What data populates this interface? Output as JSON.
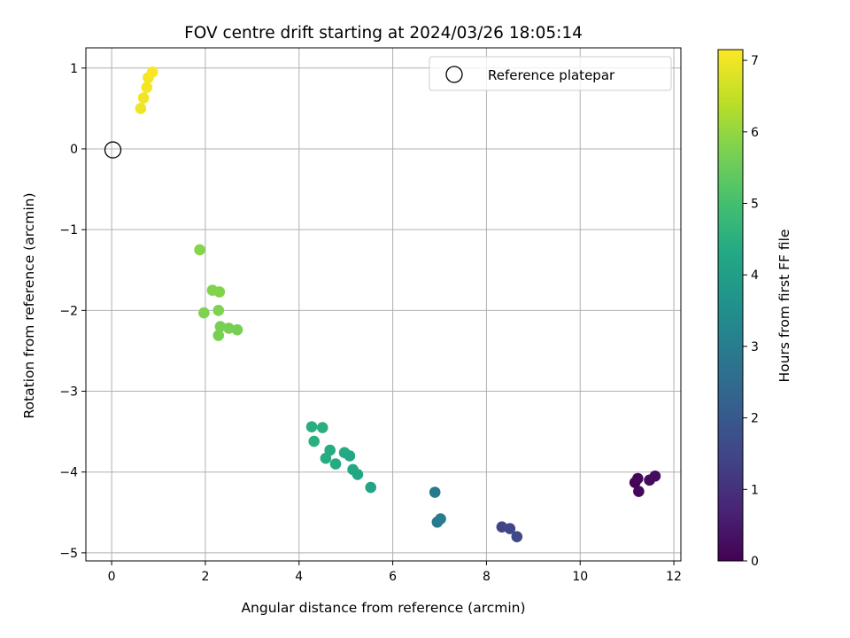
{
  "chart_data": {
    "type": "scatter",
    "title": "FOV centre drift starting at 2024/03/26 18:05:14",
    "xlabel": "Angular distance from reference (arcmin)",
    "ylabel": "Rotation from reference (arcmin)",
    "xlim": [
      -0.55,
      12.15
    ],
    "ylim": [
      -5.1,
      1.25
    ],
    "xticks": [
      0,
      2,
      4,
      6,
      8,
      10,
      12
    ],
    "yticks": [
      1,
      0,
      -1,
      -2,
      -3,
      -4,
      -5
    ],
    "xtick_labels": [
      "0",
      "2",
      "4",
      "6",
      "8",
      "10",
      "12"
    ],
    "ytick_labels": [
      "1",
      "0",
      "−1",
      "−2",
      "−3",
      "−4",
      "−5"
    ],
    "grid": true,
    "legend": {
      "placement": "top-right",
      "entries": [
        "Reference platepar"
      ]
    },
    "reference_point": {
      "x": 0,
      "y": 0
    },
    "colorbar": {
      "label": "Hours from first FF file",
      "range": [
        0,
        7.15
      ],
      "ticks": [
        0,
        1,
        2,
        3,
        4,
        5,
        6,
        7
      ],
      "tick_labels": [
        "0",
        "1",
        "2",
        "3",
        "4",
        "5",
        "6",
        "7"
      ],
      "colormap": "viridis"
    },
    "points": [
      {
        "x": 11.17,
        "y": -4.13,
        "h": 0.05
      },
      {
        "x": 11.23,
        "y": -4.08,
        "h": 0.1
      },
      {
        "x": 11.25,
        "y": -4.24,
        "h": 0.15
      },
      {
        "x": 11.48,
        "y": -4.1,
        "h": 0.2
      },
      {
        "x": 11.6,
        "y": -4.05,
        "h": 0.25
      },
      {
        "x": 8.33,
        "y": -4.68,
        "h": 1.45
      },
      {
        "x": 8.5,
        "y": -4.7,
        "h": 1.5
      },
      {
        "x": 8.65,
        "y": -4.8,
        "h": 1.55
      },
      {
        "x": 6.9,
        "y": -4.25,
        "h": 2.85
      },
      {
        "x": 6.95,
        "y": -4.62,
        "h": 2.9
      },
      {
        "x": 7.02,
        "y": -4.58,
        "h": 2.95
      },
      {
        "x": 4.27,
        "y": -3.44,
        "h": 4.45
      },
      {
        "x": 4.32,
        "y": -3.62,
        "h": 4.5
      },
      {
        "x": 4.5,
        "y": -3.45,
        "h": 4.5
      },
      {
        "x": 4.57,
        "y": -3.83,
        "h": 4.4
      },
      {
        "x": 4.66,
        "y": -3.73,
        "h": 4.4
      },
      {
        "x": 4.78,
        "y": -3.9,
        "h": 4.35
      },
      {
        "x": 4.97,
        "y": -3.76,
        "h": 4.35
      },
      {
        "x": 5.08,
        "y": -3.8,
        "h": 4.3
      },
      {
        "x": 5.15,
        "y": -3.97,
        "h": 4.3
      },
      {
        "x": 5.25,
        "y": -4.03,
        "h": 4.25
      },
      {
        "x": 5.53,
        "y": -4.19,
        "h": 4.2
      },
      {
        "x": 1.88,
        "y": -1.25,
        "h": 5.85
      },
      {
        "x": 2.15,
        "y": -1.75,
        "h": 5.8
      },
      {
        "x": 2.3,
        "y": -1.77,
        "h": 5.8
      },
      {
        "x": 1.97,
        "y": -2.03,
        "h": 5.75
      },
      {
        "x": 2.28,
        "y": -2.0,
        "h": 5.75
      },
      {
        "x": 2.32,
        "y": -2.2,
        "h": 5.7
      },
      {
        "x": 2.28,
        "y": -2.31,
        "h": 5.7
      },
      {
        "x": 2.5,
        "y": -2.22,
        "h": 5.7
      },
      {
        "x": 2.68,
        "y": -2.24,
        "h": 5.65
      },
      {
        "x": 0.62,
        "y": 0.5,
        "h": 7.0
      },
      {
        "x": 0.68,
        "y": 0.63,
        "h": 7.0
      },
      {
        "x": 0.75,
        "y": 0.76,
        "h": 7.05
      },
      {
        "x": 0.78,
        "y": 0.88,
        "h": 7.05
      },
      {
        "x": 0.87,
        "y": 0.95,
        "h": 7.1
      }
    ]
  }
}
